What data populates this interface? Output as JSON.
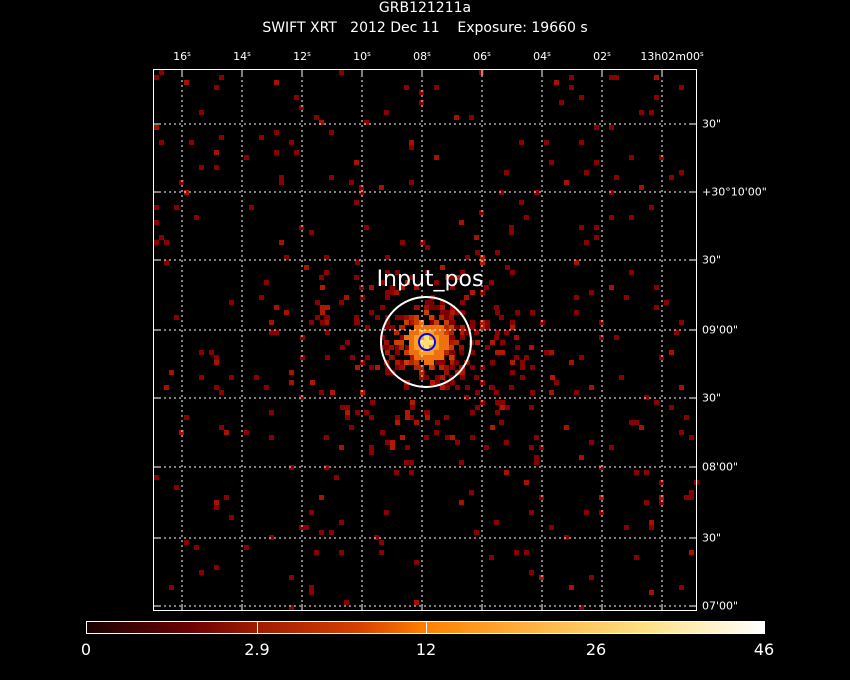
{
  "header": {
    "title": "GRB121211a",
    "subtitle": "SWIFT XRT   2012 Dec 11    Exposure: 19660 s"
  },
  "ra_ticks": [
    {
      "main": "16",
      "unit": "s"
    },
    {
      "main": "14",
      "unit": "s"
    },
    {
      "main": "12",
      "unit": "s"
    },
    {
      "main": "10",
      "unit": "s"
    },
    {
      "main": "08",
      "unit": "s"
    },
    {
      "main": "06",
      "unit": "s"
    },
    {
      "main": "04",
      "unit": "s"
    },
    {
      "main": "02",
      "unit": "s"
    },
    {
      "main": "13h02m00",
      "unit": "s"
    }
  ],
  "dec_ticks": [
    "30\"",
    "+30°10'00\"",
    "30\"",
    "09'00\"",
    "30\"",
    "08'00\"",
    "30\"",
    "07'00\""
  ],
  "source_label": "Input_pos",
  "colorbar": {
    "labels": [
      "0",
      "2.9",
      "12",
      "26",
      "46"
    ]
  },
  "colors": {
    "background": "#000000",
    "grid": "#ffffff",
    "source_circle": "#ffffff",
    "input_marker": "#0000ff"
  }
}
